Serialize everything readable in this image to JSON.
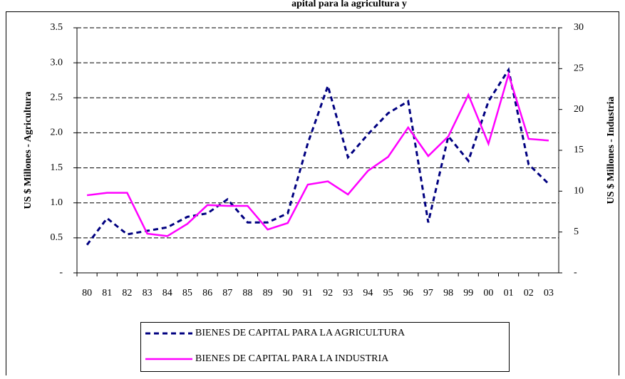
{
  "chart_data": {
    "type": "line",
    "title": "apital para la agricultura y",
    "y_label": "US $ Millones - Agricultura",
    "y2_label": "US $ Millones - Industria",
    "categories": [
      "80",
      "81",
      "82",
      "83",
      "84",
      "85",
      "86",
      "87",
      "88",
      "89",
      "90",
      "91",
      "92",
      "93",
      "94",
      "95",
      "96",
      "97",
      "98",
      "99",
      "00",
      "01",
      "02",
      "03"
    ],
    "ylim": [
      0,
      3.5
    ],
    "yticks": [
      {
        "value": 0,
        "label": "-"
      },
      0.5,
      {
        "value": 1,
        "label": "1.0"
      },
      1.5,
      {
        "value": 2,
        "label": "2.0"
      },
      2.5,
      {
        "value": 3,
        "label": "3.0"
      },
      3.5
    ],
    "y2lim": [
      0,
      30
    ],
    "y2ticks": [
      {
        "value": 0,
        "label": "-"
      },
      5,
      10,
      15,
      20,
      25,
      30
    ],
    "grid": true,
    "series": [
      {
        "name": "BIENES DE CAPITAL PARA LA AGRICULTURA",
        "color": "#000080",
        "dashed": true,
        "values": [
          0.4,
          0.78,
          0.55,
          0.6,
          0.65,
          0.8,
          0.85,
          1.05,
          0.72,
          0.72,
          0.85,
          1.85,
          2.67,
          1.65,
          1.98,
          2.28,
          2.45,
          0.72,
          1.95,
          1.6,
          2.45,
          2.9,
          1.55,
          1.27
        ]
      },
      {
        "name": "BIENES DE CAPITAL PARA LA INDUSTRIA",
        "color": "#ff00ff",
        "axis": "y2",
        "values": [
          9.5,
          9.8,
          9.8,
          4.8,
          4.5,
          6.0,
          8.3,
          8.2,
          8.2,
          5.3,
          6.1,
          10.8,
          11.2,
          9.6,
          12.5,
          14.2,
          17.8,
          14.3,
          16.7,
          21.8,
          15.8,
          24.3,
          16.4,
          16.2
        ]
      }
    ]
  }
}
